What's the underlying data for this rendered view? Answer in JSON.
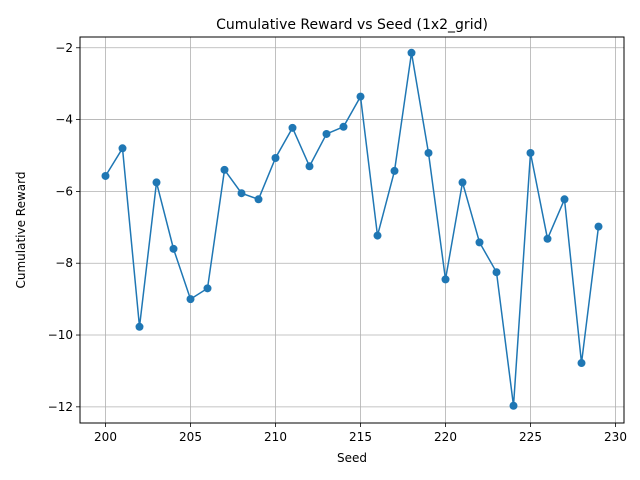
{
  "chart_data": {
    "type": "line",
    "title": "Cumulative Reward vs Seed (1x2_grid)",
    "xlabel": "Seed",
    "ylabel": "Cumulative Reward",
    "xlim": [
      198.5,
      230.5
    ],
    "ylim": [
      -12.45,
      -1.7
    ],
    "xticks": [
      200,
      205,
      210,
      215,
      220,
      225,
      230
    ],
    "yticks": [
      -12,
      -10,
      -8,
      -6,
      -4,
      -2
    ],
    "grid": true,
    "series": [
      {
        "color": "#1f77b4",
        "marker": "circle",
        "x": [
          200,
          201,
          202,
          203,
          204,
          205,
          206,
          207,
          208,
          209,
          210,
          211,
          212,
          213,
          214,
          215,
          216,
          217,
          218,
          219,
          220,
          221,
          222,
          223,
          224,
          225,
          226,
          227,
          228,
          229
        ],
        "y": [
          -5.57,
          -4.8,
          -9.77,
          -5.75,
          -7.6,
          -9.0,
          -8.7,
          -5.4,
          -6.05,
          -6.22,
          -5.07,
          -4.23,
          -5.3,
          -4.4,
          -4.2,
          -3.36,
          -7.23,
          -5.43,
          -2.14,
          -4.93,
          -8.45,
          -5.75,
          -7.42,
          -8.25,
          -11.97,
          -4.93,
          -7.32,
          -6.22,
          -10.78,
          -6.98
        ]
      }
    ]
  }
}
